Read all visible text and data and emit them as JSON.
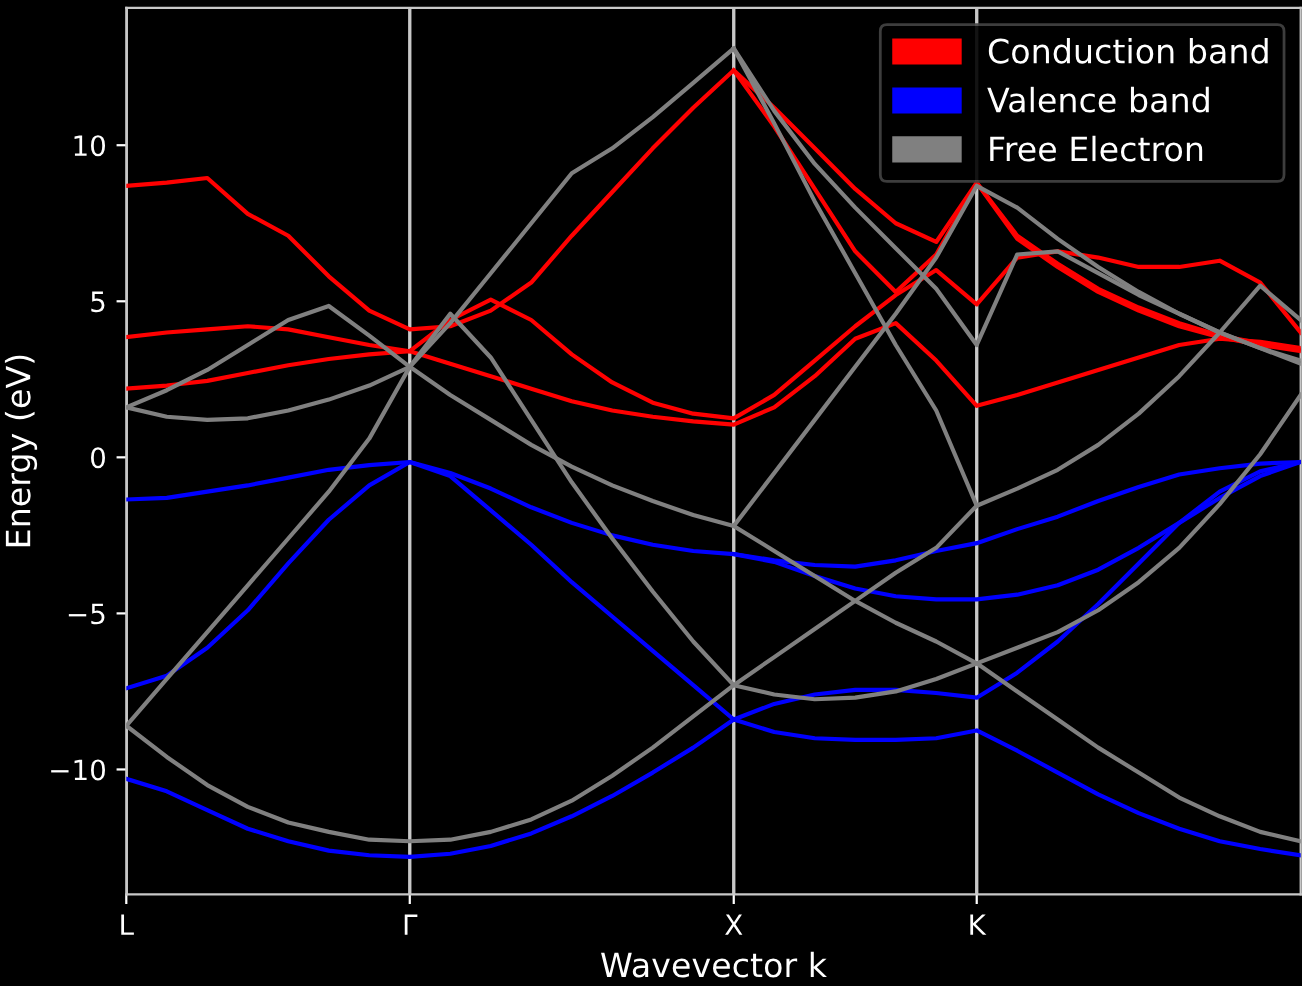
{
  "chart_data": {
    "type": "line",
    "xlabel": "Wavevector k",
    "ylabel": "Energy (eV)",
    "categories": [
      "L",
      null,
      null,
      null,
      null,
      null,
      null,
      "Γ",
      null,
      null,
      null,
      null,
      null,
      null,
      null,
      "X",
      null,
      null,
      null,
      null,
      null,
      "K",
      null,
      null,
      null,
      null,
      null,
      null,
      null,
      null
    ],
    "ylim": [
      -14.0,
      14.4
    ],
    "yticks": [
      -10,
      -5,
      0,
      5,
      10
    ],
    "grid": "x",
    "legend": "top right",
    "line_style": "solid",
    "marker": "none",
    "series": [
      {
        "name": "Conduction band",
        "color": "#ff0000",
        "values": [
          2.2,
          2.3,
          2.45,
          2.7,
          2.95,
          3.15,
          3.3,
          3.4,
          3.0,
          2.6,
          2.2,
          1.8,
          1.5,
          1.3,
          1.15,
          1.05,
          1.6,
          2.6,
          3.8,
          4.3,
          3.1,
          1.65,
          2.0,
          2.4,
          2.8,
          3.2,
          3.6,
          3.8,
          3.7,
          3.5
        ]
      },
      {
        "color": "#ff0000",
        "values": [
          3.85,
          4.0,
          4.1,
          4.2,
          4.1,
          3.85,
          3.6,
          3.4,
          4.4,
          5.05,
          4.4,
          3.3,
          2.4,
          1.75,
          1.4,
          1.25,
          2.0,
          3.1,
          4.2,
          5.2,
          6.0,
          4.9,
          6.4,
          6.6,
          6.4,
          6.1,
          6.1,
          6.3,
          5.6,
          4.0
        ]
      },
      {
        "color": "#ff0000",
        "values": [
          8.7,
          8.8,
          8.95,
          7.8,
          7.1,
          5.8,
          4.7,
          4.1,
          4.2,
          4.7,
          5.6,
          7.1,
          8.5,
          9.9,
          11.2,
          12.4,
          10.6,
          8.6,
          6.6,
          5.3,
          6.5,
          8.8,
          7.0,
          6.1,
          5.3,
          4.7,
          4.2,
          3.85,
          3.6,
          3.4
        ]
      },
      {
        "color": "#ff0000",
        "values": [
          null,
          null,
          null,
          null,
          null,
          null,
          null,
          null,
          null,
          null,
          null,
          null,
          null,
          null,
          null,
          12.4,
          11.2,
          9.9,
          8.6,
          7.5,
          6.9,
          8.8,
          7.1,
          6.2,
          5.4,
          4.8,
          4.3,
          3.9,
          3.65,
          3.45
        ]
      },
      {
        "name": "Valence band",
        "color": "#0000ff",
        "values": [
          -10.3,
          -10.7,
          -11.3,
          -11.9,
          -12.3,
          -12.6,
          -12.75,
          -12.8,
          -12.7,
          -12.45,
          -12.05,
          -11.5,
          -10.85,
          -10.1,
          -9.3,
          -8.4,
          -8.8,
          -9.0,
          -9.05,
          -9.05,
          -9.0,
          -8.75,
          -9.4,
          -10.1,
          -10.8,
          -11.4,
          -11.9,
          -12.3,
          -12.55,
          -12.75
        ]
      },
      {
        "color": "#0000ff",
        "values": [
          -7.4,
          -7.0,
          -6.1,
          -4.9,
          -3.4,
          -2.0,
          -0.9,
          -0.15,
          -0.6,
          -1.7,
          -2.8,
          -4.0,
          -5.1,
          -6.2,
          -7.3,
          -8.4,
          -7.9,
          -7.6,
          -7.45,
          -7.45,
          -7.55,
          -7.7,
          -6.9,
          -5.9,
          -4.7,
          -3.4,
          -2.1,
          -1.1,
          -0.45,
          -0.15
        ]
      },
      {
        "color": "#0000ff",
        "values": [
          -1.35,
          -1.3,
          -1.1,
          -0.9,
          -0.65,
          -0.4,
          -0.25,
          -0.15,
          -0.5,
          -1.0,
          -1.6,
          -2.1,
          -2.5,
          -2.8,
          -3.0,
          -3.1,
          -3.35,
          -3.8,
          -4.2,
          -4.45,
          -4.55,
          -4.55,
          -4.4,
          -4.1,
          -3.6,
          -2.9,
          -2.1,
          -1.3,
          -0.6,
          -0.15
        ]
      },
      {
        "color": "#0000ff",
        "values": [
          null,
          null,
          null,
          null,
          null,
          null,
          null,
          null,
          null,
          null,
          null,
          null,
          null,
          null,
          null,
          -3.1,
          -3.3,
          -3.45,
          -3.5,
          -3.3,
          -3.0,
          -2.75,
          -2.3,
          -1.9,
          -1.4,
          -0.95,
          -0.55,
          -0.35,
          -0.2,
          -0.15
        ]
      },
      {
        "name": "Free Electron",
        "color": "#808080",
        "values": [
          -8.6,
          -9.6,
          -10.5,
          -11.2,
          -11.7,
          -12.0,
          -12.25,
          -12.3,
          -12.25,
          -12.0,
          -11.6,
          -11.0,
          -10.2,
          -9.3,
          -8.3,
          -7.3,
          -7.6,
          -7.75,
          -7.7,
          -7.5,
          -7.1,
          -6.6,
          -7.5,
          -8.4,
          -9.3,
          -10.1,
          -10.9,
          -11.5,
          -12.0,
          -12.3
        ]
      },
      {
        "color": "#808080",
        "values": [
          -8.6,
          -7.1,
          -5.6,
          -4.1,
          -2.6,
          -1.1,
          0.6,
          2.9,
          4.6,
          3.2,
          1.2,
          -0.8,
          -2.6,
          -4.3,
          -5.9,
          -7.3,
          -6.4,
          -5.5,
          -4.6,
          -3.7,
          -2.9,
          -1.55,
          null,
          null,
          null,
          null,
          null,
          null,
          null,
          null
        ]
      },
      {
        "color": "#808080",
        "values": [
          1.6,
          2.15,
          2.8,
          3.6,
          4.4,
          4.85,
          3.9,
          2.9,
          4.3,
          5.9,
          7.5,
          9.1,
          9.9,
          10.9,
          12.0,
          13.1,
          11.1,
          9.4,
          8.0,
          6.7,
          5.4,
          3.6,
          6.5,
          6.6,
          5.9,
          5.2,
          4.6,
          4.0,
          3.5,
          3.0
        ]
      },
      {
        "color": "#808080",
        "values": [
          1.6,
          1.3,
          1.2,
          1.25,
          1.5,
          1.85,
          2.3,
          2.9,
          2.0,
          1.2,
          0.4,
          -0.3,
          -0.9,
          -1.4,
          -1.85,
          -2.2,
          -0.5,
          1.2,
          2.9,
          4.6,
          6.4,
          8.7,
          8.0,
          7.0,
          6.1,
          5.3,
          4.6,
          4.0,
          3.5,
          3.1
        ]
      },
      {
        "color": "#808080",
        "values": [
          null,
          null,
          null,
          null,
          null,
          null,
          null,
          null,
          null,
          null,
          null,
          null,
          null,
          null,
          null,
          13.1,
          10.7,
          8.2,
          5.9,
          3.6,
          1.5,
          -1.55,
          -1.0,
          -0.4,
          0.4,
          1.4,
          2.6,
          4.0,
          5.5,
          4.4
        ]
      },
      {
        "color": "#808080",
        "values": [
          null,
          null,
          null,
          null,
          null,
          null,
          null,
          null,
          null,
          null,
          null,
          null,
          null,
          null,
          null,
          -2.2,
          -3.0,
          -3.8,
          -4.6,
          -5.3,
          -5.9,
          -6.6,
          -6.1,
          -5.6,
          -4.9,
          -4.0,
          -2.9,
          -1.5,
          0.1,
          2.0
        ]
      }
    ]
  }
}
